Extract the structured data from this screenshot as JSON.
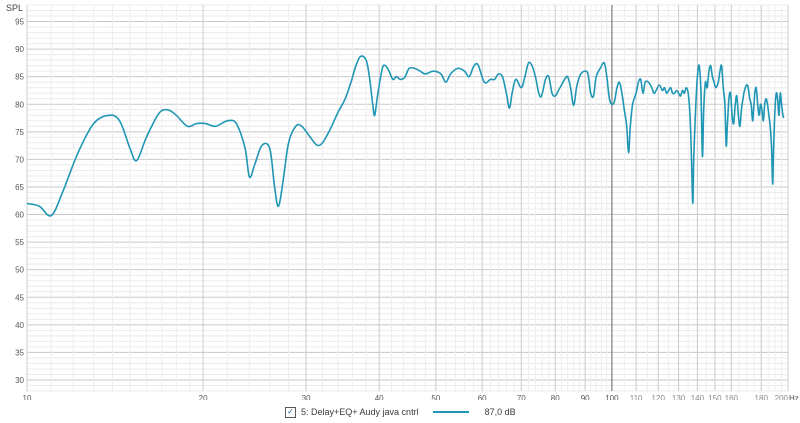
{
  "chart_data": {
    "type": "line",
    "ylabel": "SPL",
    "x_unit_label": "Hz",
    "x_scale": "log",
    "xlim": [
      10,
      200
    ],
    "ylim": [
      28,
      98
    ],
    "grid": true,
    "y_ticks": [
      "95",
      "90",
      "85",
      "80",
      "75",
      "70",
      "65",
      "60",
      "55",
      "50",
      "45",
      "40",
      "35",
      "30"
    ],
    "y_tick_values": [
      95,
      90,
      85,
      80,
      75,
      70,
      65,
      60,
      55,
      50,
      45,
      40,
      35,
      30
    ],
    "x_tick_values": [
      10,
      20,
      30,
      40,
      50,
      60,
      70,
      80,
      90,
      100,
      110,
      120,
      130,
      140,
      150,
      160,
      180,
      200
    ],
    "x_ticks": [
      "10",
      "20",
      "30",
      "40",
      "50",
      "60",
      "70",
      "80",
      "90",
      "100",
      "110",
      "120",
      "130",
      "140",
      "150",
      "160",
      "180",
      "200"
    ],
    "cursor_x": 100,
    "series": [
      {
        "name": "5: Delay+EQ+ Audy java cntrl",
        "color": "#1f97b4",
        "points": [
          [
            10,
            62
          ],
          [
            10.5,
            61.5
          ],
          [
            11,
            59.8
          ],
          [
            11.5,
            64
          ],
          [
            12.2,
            71
          ],
          [
            13,
            76.5
          ],
          [
            13.8,
            78
          ],
          [
            14.4,
            77
          ],
          [
            15,
            72
          ],
          [
            15.4,
            69.8
          ],
          [
            16,
            74
          ],
          [
            16.8,
            78.3
          ],
          [
            17.4,
            79
          ],
          [
            18,
            78
          ],
          [
            18.8,
            76
          ],
          [
            19.5,
            76.5
          ],
          [
            20.2,
            76.5
          ],
          [
            21,
            76
          ],
          [
            22,
            77
          ],
          [
            22.8,
            76.5
          ],
          [
            23.6,
            72
          ],
          [
            24,
            66.8
          ],
          [
            24.5,
            69
          ],
          [
            25.2,
            72.5
          ],
          [
            26,
            72
          ],
          [
            26.5,
            65
          ],
          [
            26.9,
            61.5
          ],
          [
            27.4,
            66
          ],
          [
            28,
            73
          ],
          [
            28.8,
            76
          ],
          [
            29.5,
            76
          ],
          [
            30.5,
            74
          ],
          [
            31.3,
            72.6
          ],
          [
            32,
            73
          ],
          [
            33,
            75.5
          ],
          [
            34,
            78.5
          ],
          [
            35,
            81
          ],
          [
            35.8,
            84
          ],
          [
            36.5,
            87
          ],
          [
            37.2,
            88.7
          ],
          [
            38,
            88
          ],
          [
            38.5,
            85
          ],
          [
            39,
            80
          ],
          [
            39.3,
            78
          ],
          [
            39.8,
            82
          ],
          [
            40.5,
            86.5
          ],
          [
            41,
            87
          ],
          [
            41.6,
            86
          ],
          [
            42.2,
            84.5
          ],
          [
            42.8,
            85
          ],
          [
            43.5,
            84.5
          ],
          [
            44.3,
            85
          ],
          [
            45,
            86.5
          ],
          [
            46,
            86.5
          ],
          [
            47,
            86
          ],
          [
            48,
            85.5
          ],
          [
            49.5,
            86
          ],
          [
            51,
            85.5
          ],
          [
            52,
            84
          ],
          [
            53,
            85.5
          ],
          [
            54.5,
            86.5
          ],
          [
            56,
            86
          ],
          [
            57,
            85
          ],
          [
            58,
            86.8
          ],
          [
            59,
            87.2
          ],
          [
            60.5,
            84
          ],
          [
            62,
            84.5
          ],
          [
            63,
            84.5
          ],
          [
            64,
            85.5
          ],
          [
            65,
            85
          ],
          [
            66,
            82
          ],
          [
            66.8,
            79.3
          ],
          [
            67.5,
            82
          ],
          [
            68.5,
            84.5
          ],
          [
            70,
            83
          ],
          [
            71,
            85
          ],
          [
            72,
            87.5
          ],
          [
            73,
            87
          ],
          [
            74,
            85
          ],
          [
            75,
            82
          ],
          [
            75.8,
            81.5
          ],
          [
            77,
            84.5
          ],
          [
            78,
            85
          ],
          [
            79,
            82
          ],
          [
            80,
            81.5
          ],
          [
            81,
            82.5
          ],
          [
            82,
            83.5
          ],
          [
            83,
            84.5
          ],
          [
            84,
            85
          ],
          [
            85,
            83
          ],
          [
            86,
            79.8
          ],
          [
            87,
            83
          ],
          [
            88,
            85
          ],
          [
            89,
            85.8
          ],
          [
            90,
            86
          ],
          [
            91,
            85.5
          ],
          [
            92,
            82
          ],
          [
            93,
            81.5
          ],
          [
            94,
            85
          ],
          [
            95.5,
            86.5
          ],
          [
            97,
            87.5
          ],
          [
            98,
            85
          ],
          [
            99,
            81
          ],
          [
            100,
            80
          ],
          [
            101,
            80.5
          ],
          [
            102,
            83
          ],
          [
            103,
            84
          ],
          [
            104,
            82
          ],
          [
            105,
            79
          ],
          [
            106,
            76
          ],
          [
            106.8,
            71.2
          ],
          [
            107.5,
            76
          ],
          [
            108.5,
            80
          ],
          [
            110,
            82
          ],
          [
            111,
            84
          ],
          [
            112,
            84.5
          ],
          [
            113,
            82
          ],
          [
            114,
            84
          ],
          [
            115.5,
            84
          ],
          [
            117,
            83
          ],
          [
            118,
            82
          ],
          [
            119,
            82.5
          ],
          [
            120.5,
            83.5
          ],
          [
            122,
            82.5
          ],
          [
            123,
            83
          ],
          [
            124,
            82
          ],
          [
            125,
            82.5
          ],
          [
            126,
            83
          ],
          [
            127,
            82
          ],
          [
            128,
            82
          ],
          [
            129,
            82.5
          ],
          [
            130,
            82
          ],
          [
            131,
            81.5
          ],
          [
            132,
            82.5
          ],
          [
            133,
            82
          ],
          [
            134,
            83
          ],
          [
            135,
            82
          ],
          [
            136,
            78
          ],
          [
            136.8,
            70
          ],
          [
            137.5,
            62
          ],
          [
            138,
            70
          ],
          [
            139,
            79
          ],
          [
            140,
            85
          ],
          [
            141,
            87
          ],
          [
            142,
            82
          ],
          [
            142.8,
            70.5
          ],
          [
            143.5,
            79
          ],
          [
            144.5,
            84
          ],
          [
            145.5,
            83
          ],
          [
            146.5,
            86
          ],
          [
            147.5,
            87
          ],
          [
            148.5,
            85
          ],
          [
            149.5,
            84
          ],
          [
            150.5,
            83
          ],
          [
            152,
            84
          ],
          [
            153,
            86
          ],
          [
            154,
            87
          ],
          [
            155,
            83
          ],
          [
            156,
            80
          ],
          [
            156.8,
            72.5
          ],
          [
            157.5,
            76
          ],
          [
            158.5,
            81
          ],
          [
            159.5,
            82
          ],
          [
            160.5,
            78
          ],
          [
            161.5,
            76.5
          ],
          [
            162.5,
            80
          ],
          [
            163.5,
            81.5
          ],
          [
            164.5,
            78
          ],
          [
            165.5,
            76
          ],
          [
            166.5,
            79
          ],
          [
            167.5,
            81
          ],
          [
            168.5,
            82.5
          ],
          [
            170,
            83.5
          ],
          [
            171,
            83
          ],
          [
            172,
            81
          ],
          [
            173,
            80
          ],
          [
            174,
            77
          ],
          [
            174.8,
            79.5
          ],
          [
            175.5,
            82
          ],
          [
            176.5,
            83
          ],
          [
            177.5,
            80
          ],
          [
            178.5,
            78
          ],
          [
            179.5,
            80
          ],
          [
            180.5,
            79
          ],
          [
            181.5,
            77
          ],
          [
            182.5,
            80
          ],
          [
            183.5,
            81
          ],
          [
            184.5,
            80
          ],
          [
            185.5,
            78
          ],
          [
            186.5,
            76
          ],
          [
            187.5,
            72
          ],
          [
            188.3,
            65.5
          ],
          [
            189,
            72
          ],
          [
            190,
            79
          ],
          [
            191,
            82
          ],
          [
            192,
            81
          ],
          [
            193,
            78
          ],
          [
            194,
            82
          ],
          [
            195,
            80
          ],
          [
            196,
            78
          ],
          [
            196.8,
            77.5
          ]
        ]
      }
    ]
  },
  "legend": {
    "checked": true,
    "check_glyph": "✓",
    "series_label": "5: Delay+EQ+ Audy java cntrl",
    "value": "87,0 dB"
  }
}
